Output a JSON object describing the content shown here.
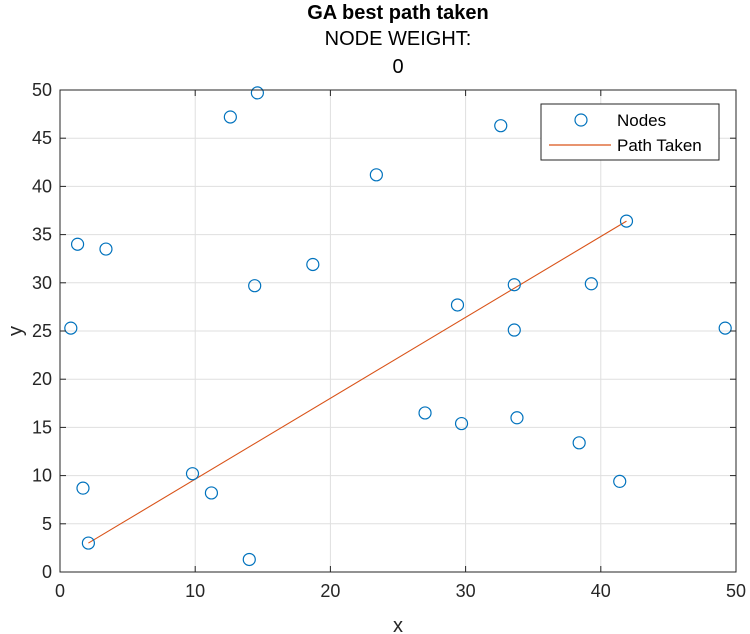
{
  "chart_data": {
    "type": "scatter",
    "title": "GA best path taken",
    "subtitle": [
      "NODE WEIGHT:",
      "0"
    ],
    "xlabel": "x",
    "ylabel": "y",
    "xlim": [
      0,
      50
    ],
    "ylim": [
      0,
      50
    ],
    "xticks": [
      0,
      10,
      20,
      30,
      40,
      50
    ],
    "yticks": [
      0,
      5,
      10,
      15,
      20,
      25,
      30,
      35,
      40,
      45,
      50
    ],
    "grid": true,
    "legend_position": "top-right",
    "colors": {
      "nodes": "#0072BD",
      "path": "#D95319"
    },
    "series": [
      {
        "name": "Nodes",
        "marker": "circle",
        "points": [
          [
            0.8,
            25.3
          ],
          [
            1.3,
            34.0
          ],
          [
            3.4,
            33.5
          ],
          [
            1.7,
            8.7
          ],
          [
            2.1,
            3.0
          ],
          [
            9.8,
            10.2
          ],
          [
            11.2,
            8.2
          ],
          [
            12.6,
            47.2
          ],
          [
            14.6,
            49.7
          ],
          [
            14.4,
            29.7
          ],
          [
            14.0,
            1.3
          ],
          [
            18.7,
            31.9
          ],
          [
            23.4,
            41.2
          ],
          [
            27.0,
            16.5
          ],
          [
            29.4,
            27.7
          ],
          [
            29.7,
            15.4
          ],
          [
            32.6,
            46.3
          ],
          [
            33.6,
            29.8
          ],
          [
            33.6,
            25.1
          ],
          [
            33.8,
            16.0
          ],
          [
            39.3,
            29.9
          ],
          [
            38.4,
            13.4
          ],
          [
            41.4,
            9.4
          ],
          [
            41.9,
            36.4
          ],
          [
            49.2,
            25.3
          ]
        ]
      },
      {
        "name": "Path Taken",
        "type": "line",
        "points": [
          [
            2.1,
            3.0
          ],
          [
            41.9,
            36.4
          ]
        ]
      }
    ]
  }
}
